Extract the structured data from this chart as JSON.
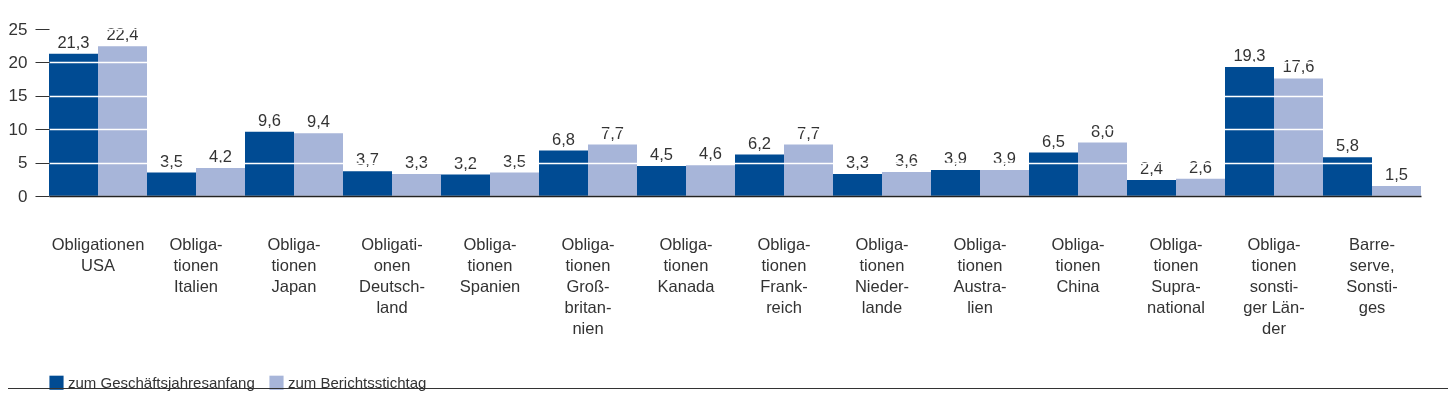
{
  "chart_data": {
    "type": "bar",
    "categories": [
      "Obligationen\nUSA",
      "Obliga-\ntionen\nItalien",
      "Obliga-\ntionen\nJapan",
      "Obligati-\nonen\nDeutsch-\nland",
      "Obliga-\ntionen\nSpanien",
      "Obliga-\ntionen\nGroß-\nbritan-\nnien",
      "Obliga-\ntionen\nKanada",
      "Obliga-\ntionen\nFrank-\nreich",
      "Obliga-\ntionen\nNieder-\nlande",
      "Obliga-\ntionen\nAustra-\nlien",
      "Obliga-\ntionen\nChina",
      "Obliga-\ntionen\nSupra-\nnational",
      "Obliga-\ntionen\nsonsti-\nger Län-\nder",
      "Barre-\nserve,\nSonsti-\nges"
    ],
    "series": [
      {
        "name": "zum Geschäftsjahresanfang",
        "color": "#004b93",
        "values": [
          21.3,
          3.5,
          9.6,
          3.7,
          3.2,
          6.8,
          4.5,
          6.2,
          3.3,
          3.9,
          6.5,
          2.4,
          19.3,
          5.8
        ],
        "value_labels": [
          "21,3",
          "3,5",
          "9,6",
          "3,7",
          "3,2",
          "6,8",
          "4,5",
          "6,2",
          "3,3",
          "3,9",
          "6,5",
          "2,4",
          "19,3",
          "5,8"
        ]
      },
      {
        "name": "zum Berichtsstichtag",
        "color": "#a7b5d9",
        "values": [
          22.4,
          4.2,
          9.4,
          3.3,
          3.5,
          7.7,
          4.6,
          7.7,
          3.6,
          3.9,
          8.0,
          2.6,
          17.6,
          1.5
        ],
        "value_labels": [
          "22,4",
          "4,2",
          "9,4",
          "3,3",
          "3,5",
          "7,7",
          "4,6",
          "7,7",
          "3,6",
          "3,9",
          "8,0",
          "2,6",
          "17,6",
          "1,5"
        ]
      }
    ],
    "ylim": [
      0,
      25
    ],
    "yticks": [
      0,
      5,
      10,
      15,
      20,
      25
    ],
    "grid": "y",
    "legend": "bottom left"
  }
}
